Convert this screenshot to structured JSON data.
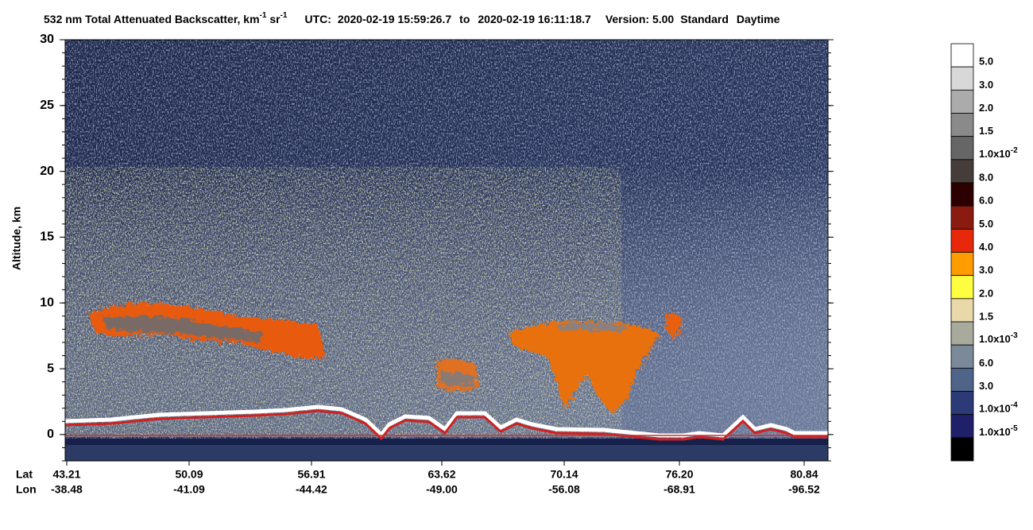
{
  "chart_data": {
    "type": "heatmap",
    "title": {
      "main": "532 nm Total Attenuated Backscatter, km",
      "unit_exp1": "-1",
      "unit2": " sr",
      "unit_exp2": "-1",
      "utc_label": "UTC:",
      "start": "2020-02-19 15:59:26.7",
      "to": "to",
      "end": "2020-02-19 16:11:18.7",
      "version": "Version: 5.00",
      "product": "Standard",
      "mode": "Daytime"
    },
    "y_label": "Altitude, km",
    "ylim": [
      -2,
      30
    ],
    "yticks": [
      0,
      5,
      10,
      15,
      20,
      25,
      30
    ],
    "x_row_labels": [
      "Lat",
      "Lon"
    ],
    "x_ticks": {
      "lat": [
        "43.21",
        "50.09",
        "56.91",
        "63.62",
        "70.14",
        "76.20",
        "80.84"
      ],
      "lon": [
        "-38.48",
        "-41.09",
        "-44.42",
        "-49.00",
        "-56.08",
        "-68.91",
        "-96.52"
      ]
    },
    "colorbar": {
      "colors": [
        "#ffffff",
        "#d8d8d8",
        "#ababab",
        "#8a8a8a",
        "#666666",
        "#463d3a",
        "#2c0000",
        "#8b1a10",
        "#e8280a",
        "#ff9c00",
        "#ffff40",
        "#e8d8aa",
        "#a8aa9c",
        "#7a8a98",
        "#4e6488",
        "#2c3a78",
        "#20206a",
        "#000000"
      ],
      "labels": [
        "5.0",
        "3.0",
        "2.0",
        "1.5",
        {
          "text": "1.0x10",
          "exp": "-2"
        },
        "8.0",
        "6.0",
        "5.0",
        "4.0",
        "3.0",
        "2.0",
        "1.5",
        {
          "text": "1.0x10",
          "exp": "-3"
        },
        "6.0",
        "3.0",
        {
          "text": "1.0x10",
          "exp": "-4"
        },
        {
          "text": "1.0x10",
          "exp": "-5"
        }
      ]
    }
  }
}
